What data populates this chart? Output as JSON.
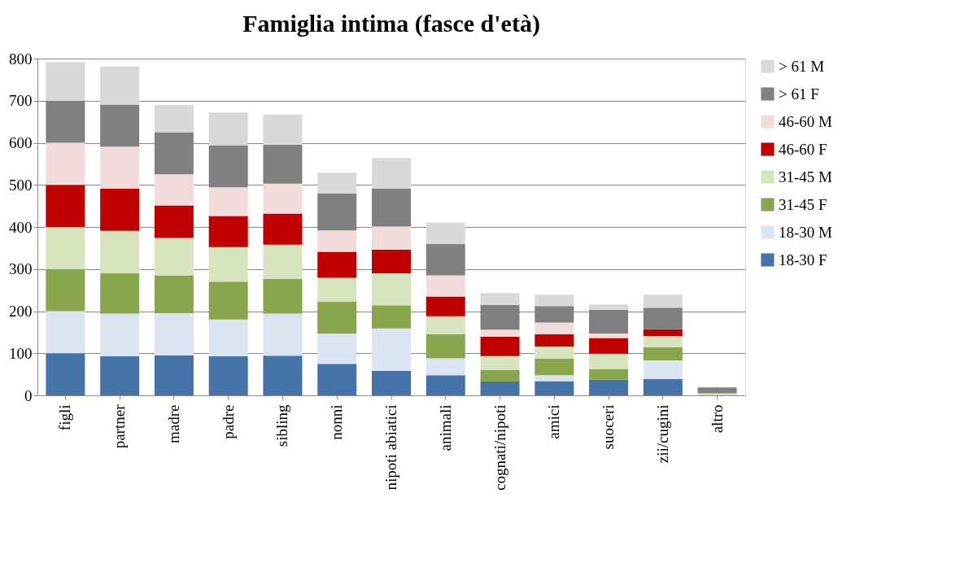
{
  "chart_data": {
    "type": "bar",
    "title": "Famiglia intima (fasce d'età)",
    "stacked": true,
    "categories": [
      "figli",
      "partner",
      "madre",
      "padre",
      "sibling",
      "nonni",
      "nipoti abiatici",
      "animali",
      "cognati/nipoti",
      "amici",
      "suoceri",
      "zii/cugini",
      "altro"
    ],
    "series": [
      {
        "name": "18-30 F",
        "color": "#4572a7",
        "values": [
          100,
          93,
          95,
          93,
          94,
          75,
          58,
          48,
          33,
          34,
          37,
          39,
          null
        ]
      },
      {
        "name": "18-30 M",
        "color": "#dbe5f1",
        "values": [
          100,
          101,
          100,
          87,
          100,
          72,
          101,
          40,
          0,
          14,
          0,
          44,
          0
        ]
      },
      {
        "name": "31-45 F",
        "color": "#89a54e",
        "values": [
          100,
          96,
          90,
          90,
          83,
          75,
          55,
          57,
          27,
          39,
          25,
          31,
          0
        ]
      },
      {
        "name": "31-45 M",
        "color": "#d7e4bd",
        "values": [
          100,
          101,
          89,
          82,
          81,
          57,
          76,
          43,
          33,
          29,
          37,
          27,
          5
        ]
      },
      {
        "name": "46-60 F",
        "color": "#c00000",
        "values": [
          100,
          100,
          77,
          74,
          74,
          62,
          56,
          47,
          46,
          29,
          37,
          16,
          0
        ]
      },
      {
        "name": "46-60 M",
        "color": "#f2dcdb",
        "values": [
          100,
          100,
          74,
          68,
          71,
          51,
          55,
          50,
          17,
          28,
          11,
          0,
          0
        ]
      },
      {
        "name": "> 61 F",
        "color": "#808080",
        "values": [
          100,
          100,
          100,
          100,
          92,
          87,
          90,
          75,
          59,
          39,
          56,
          51,
          14
        ]
      },
      {
        "name": "> 61 M",
        "color": "#d9d9d9",
        "values": [
          92,
          90,
          65,
          78,
          72,
          50,
          73,
          50,
          28,
          27,
          13,
          31,
          0
        ]
      }
    ],
    "ylim": [
      0,
      800
    ],
    "yticks": [
      0,
      100,
      200,
      300,
      400,
      500,
      600,
      700,
      800
    ],
    "grid": "y",
    "legend": "right"
  }
}
